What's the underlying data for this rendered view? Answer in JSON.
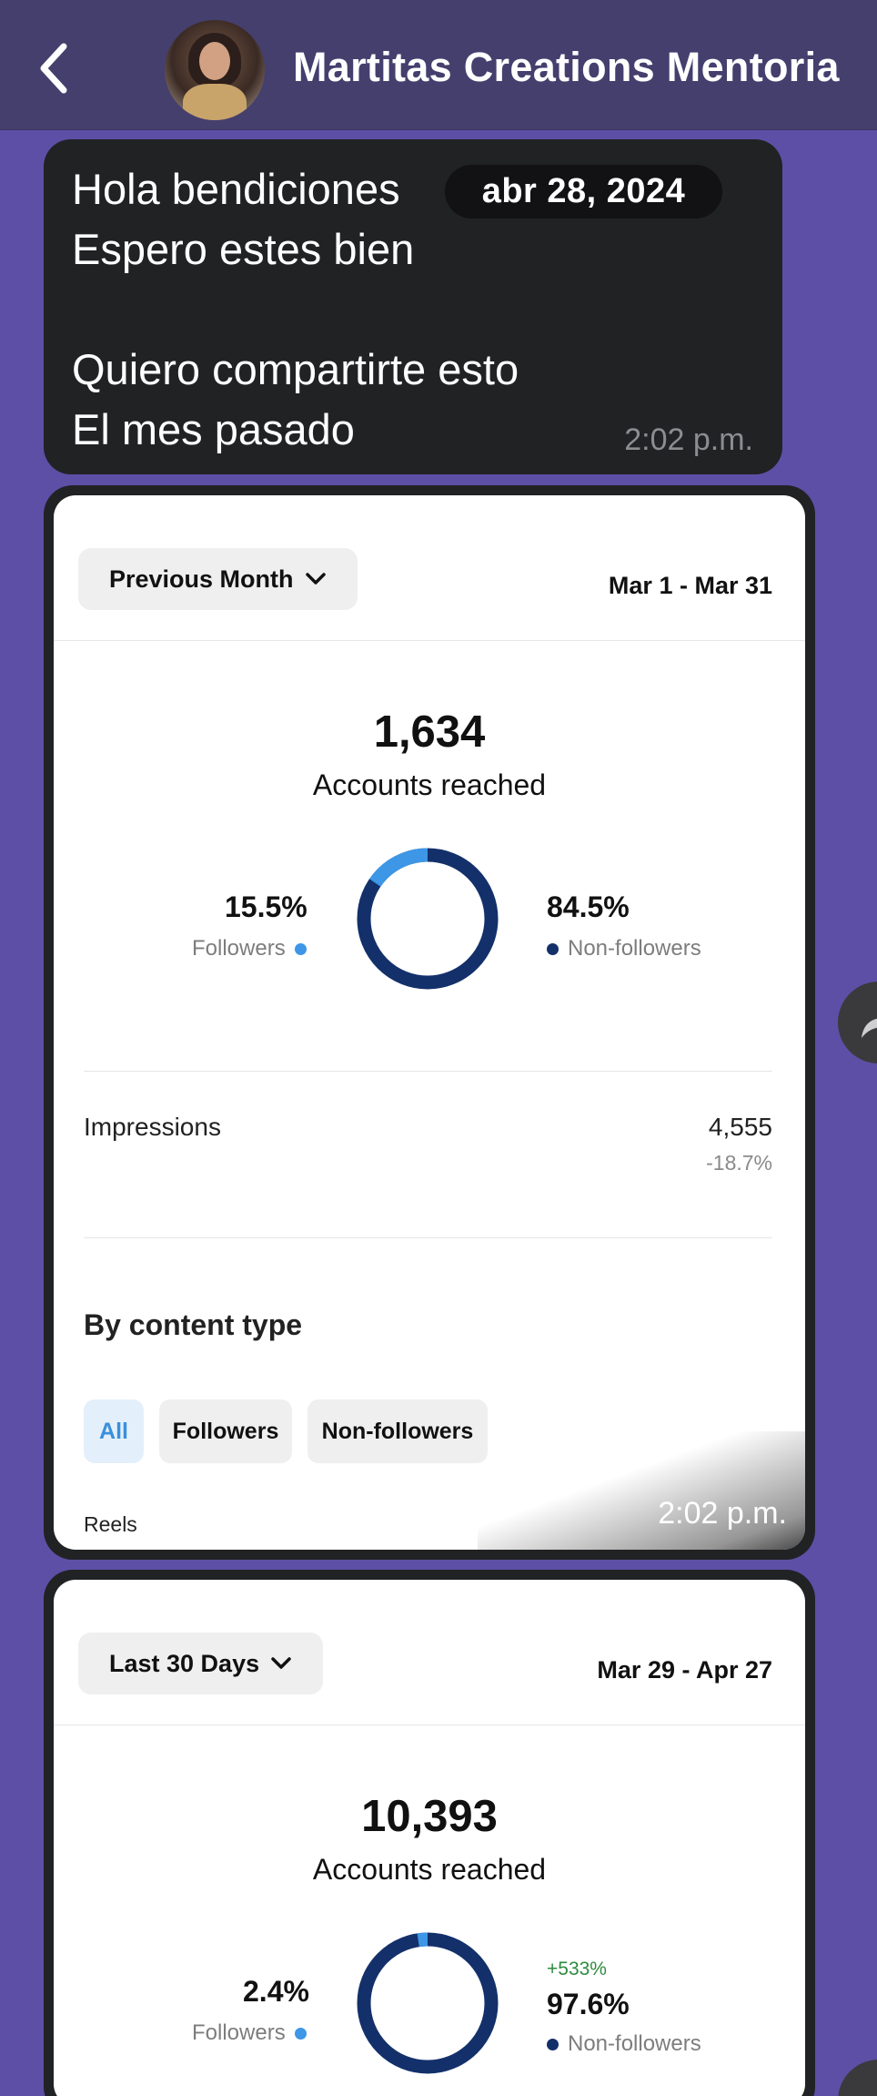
{
  "header": {
    "title": "Martitas Creations Mentoria",
    "back_icon": "chevron-left-icon",
    "colors": {
      "bar": "#453f6e",
      "chat_bg": "#5d4fa6"
    }
  },
  "message": {
    "lines": [
      "Hola bendiciones",
      "Espero estes bien",
      "",
      "Quiero compartirte esto",
      "El mes pasado"
    ],
    "date_pill": "abr 28, 2024",
    "time": "2:02 p.m."
  },
  "image1": {
    "period": "Previous Month",
    "range": "Mar 1 - Mar 31",
    "accounts_reached": "1,634",
    "accounts_label": "Accounts reached",
    "followers_pct": "15.5%",
    "followers_label": "Followers",
    "nonfollowers_pct": "84.5%",
    "nonfollowers_label": "Non-followers",
    "followers_fraction": 0.155,
    "impressions_label": "Impressions",
    "impressions_value": "4,555",
    "impressions_change": "-18.7%",
    "content_type_title": "By content type",
    "chips": [
      "All",
      "Followers",
      "Non-followers"
    ],
    "reels_label": "Reels",
    "time": "2:02 p.m."
  },
  "image2": {
    "period": "Last 30 Days",
    "range": "Mar 29 - Apr 27",
    "accounts_reached": "10,393",
    "accounts_label": "Accounts reached",
    "followers_pct": "2.4%",
    "followers_label": "Followers",
    "nonfollowers_growth": "+533%",
    "nonfollowers_pct": "97.6%",
    "nonfollowers_label": "Non-followers",
    "followers_fraction": 0.024
  },
  "colors": {
    "followers": "#3d96e6",
    "nonfollowers": "#13306a"
  }
}
